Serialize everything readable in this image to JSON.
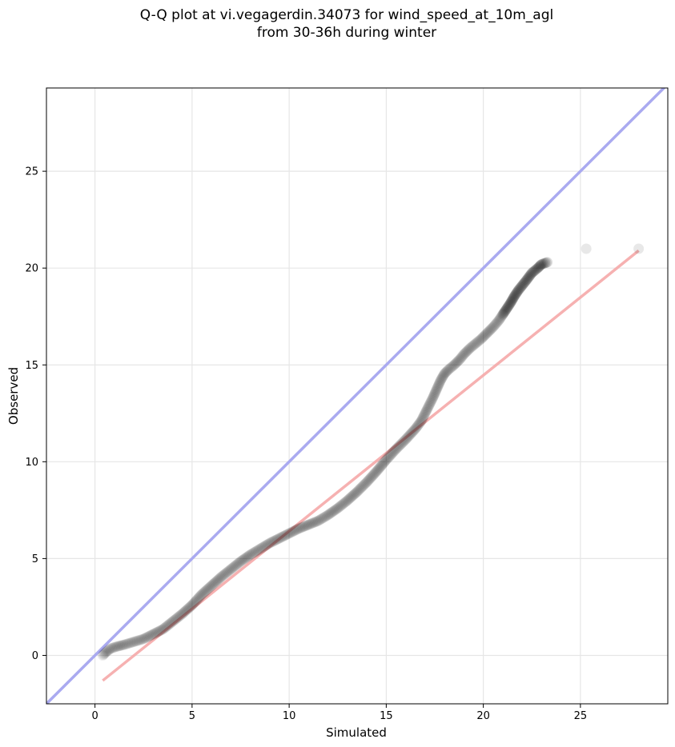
{
  "chart_data": {
    "type": "scatter",
    "title_lines": [
      "Q-Q plot at vi.vegagerdin.34073 for wind_speed_at_10m_agl",
      "from 30-36h during winter"
    ],
    "xlabel": "Simulated",
    "ylabel": "Observed",
    "xlim": [
      -2.5,
      29.5
    ],
    "ylim": [
      -2.5,
      29.3
    ],
    "xticks": [
      0,
      5,
      10,
      15,
      20,
      25
    ],
    "yticks": [
      0,
      5,
      10,
      15,
      20,
      25
    ],
    "grid": true,
    "colors": {
      "points": "#000000",
      "identity_line": "#aaaaf0",
      "fit_line": "#f5a8a8",
      "grid": "#e6e6e6"
    },
    "identity_line": {
      "x": [
        -2.5,
        29.5
      ],
      "y": [
        -2.5,
        29.5
      ]
    },
    "fit_line": {
      "x": [
        0.4,
        28.0
      ],
      "y": [
        -1.3,
        20.9
      ]
    },
    "series": [
      {
        "values_x": [
          0.4,
          0.6,
          0.8,
          1.1,
          1.5,
          2.0,
          2.5,
          3.0,
          3.5,
          4.0,
          4.5,
          5.0,
          5.5,
          6.0,
          6.5,
          7.0,
          7.5,
          8.0,
          8.5,
          9.0,
          9.5,
          10.0,
          10.5,
          11.0,
          11.5,
          12.0,
          12.5,
          13.0,
          13.5,
          14.0,
          14.5,
          15.0,
          15.5,
          16.0,
          16.5,
          16.8,
          17.0,
          17.2,
          17.4,
          17.6,
          17.8,
          18.0,
          18.2,
          18.5,
          18.8,
          19.0,
          19.3,
          19.6,
          19.9,
          20.2,
          20.5,
          20.8,
          21.0,
          21.2,
          21.4,
          21.6,
          21.8,
          22.0,
          22.2,
          22.5,
          22.8,
          23.0,
          23.3,
          25.3,
          28.0
        ],
        "values_y": [
          0.0,
          0.2,
          0.35,
          0.45,
          0.55,
          0.7,
          0.85,
          1.1,
          1.35,
          1.75,
          2.15,
          2.6,
          3.15,
          3.6,
          4.05,
          4.45,
          4.85,
          5.2,
          5.5,
          5.8,
          6.05,
          6.3,
          6.55,
          6.75,
          6.95,
          7.25,
          7.6,
          8.0,
          8.45,
          8.95,
          9.5,
          10.1,
          10.65,
          11.15,
          11.7,
          12.1,
          12.5,
          12.9,
          13.3,
          13.75,
          14.2,
          14.55,
          14.75,
          15.0,
          15.3,
          15.55,
          15.85,
          16.1,
          16.35,
          16.65,
          16.95,
          17.3,
          17.6,
          17.9,
          18.2,
          18.55,
          18.85,
          19.1,
          19.35,
          19.75,
          20.0,
          20.2,
          20.3,
          21.0,
          21.0
        ]
      }
    ]
  }
}
